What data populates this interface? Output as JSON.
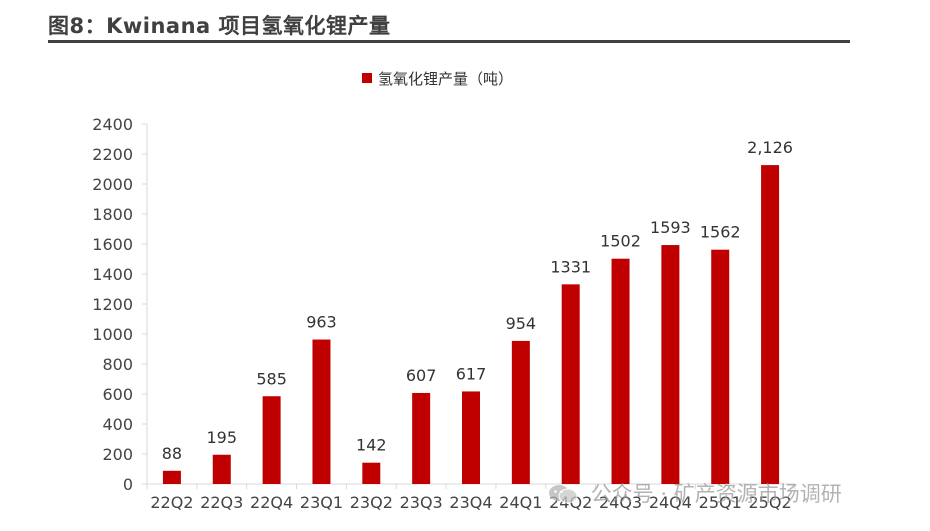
{
  "figure": {
    "title": "图8：Kwinana 项目氢氧化锂产量"
  },
  "watermark": {
    "text": "公众号 · 矿产资源市场调研",
    "icon": "wechat-icon"
  },
  "colors": {
    "bar": "#C00000",
    "axis": "#d9d9d9",
    "title_rule": "#404040"
  },
  "chart_data": {
    "type": "bar",
    "title": "",
    "xlabel": "",
    "ylabel": "",
    "ylim": [
      0,
      2400
    ],
    "yticks": [
      "0",
      "200",
      "400",
      "600",
      "800",
      "1000",
      "1200",
      "1400",
      "1600",
      "1800",
      "2000",
      "2200",
      "2400"
    ],
    "grid": false,
    "legend_position": "top-center",
    "categories": [
      "22Q2",
      "22Q3",
      "22Q4",
      "23Q1",
      "23Q2",
      "23Q3",
      "23Q4",
      "24Q1",
      "24Q2",
      "24Q3",
      "24Q4",
      "25Q1",
      "25Q2"
    ],
    "series": [
      {
        "name": "氢氧化锂产量（吨）",
        "values": [
          88,
          195,
          585,
          963,
          142,
          607,
          617,
          954,
          1331,
          1502,
          1593,
          1562,
          2126
        ],
        "labels": [
          "88",
          "195",
          "585",
          "963",
          "142",
          "607",
          "617",
          "954",
          "1331",
          "1502",
          "1593",
          "1562",
          "2,126"
        ]
      }
    ]
  }
}
